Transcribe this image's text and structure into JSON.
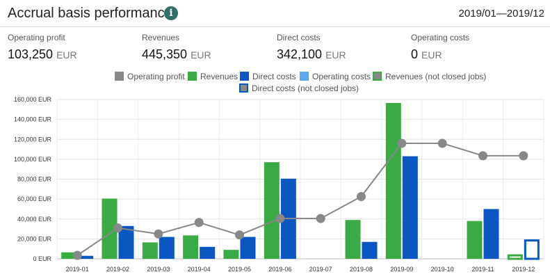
{
  "header": {
    "title": "Accrual basis performance",
    "info_icon": "info-icon",
    "period": "2019/01—2019/12"
  },
  "kpis": [
    {
      "label": "Operating profit",
      "value": "103,250",
      "unit": "EUR"
    },
    {
      "label": "Revenues",
      "value": "445,350",
      "unit": "EUR"
    },
    {
      "label": "Direct costs",
      "value": "342,100",
      "unit": "EUR"
    },
    {
      "label": "Operating costs",
      "value": "0",
      "unit": "EUR"
    }
  ],
  "colors": {
    "operating_profit": "#888888",
    "revenues": "#3aaa44",
    "direct_costs": "#0a57c2",
    "operating_costs": "#5aa8f0"
  },
  "chart_data": {
    "type": "bar",
    "categories": [
      "2019-01",
      "2019-02",
      "2019-03",
      "2019-04",
      "2019-05",
      "2019-06",
      "2019-07",
      "2019-08",
      "2019-09",
      "2019-10",
      "2019-11",
      "2019-12"
    ],
    "ylim": [
      0,
      160000
    ],
    "yticks": [
      0,
      20000,
      40000,
      60000,
      80000,
      100000,
      120000,
      140000,
      160000
    ],
    "ytick_labels": [
      "0 EUR",
      "20,000 EUR",
      "40,000 EUR",
      "60,000 EUR",
      "80,000 EUR",
      "100,000 EUR",
      "120,000 EUR",
      "140,000 EUR",
      "160,000 EUR"
    ],
    "grid": true,
    "legend_position": "top-center",
    "legend": [
      {
        "name": "Operating profit",
        "color": "#888888",
        "style": "square-gray"
      },
      {
        "name": "Revenues",
        "color": "#3aaa44",
        "style": "square"
      },
      {
        "name": "Direct costs",
        "color": "#0a57c2",
        "style": "square"
      },
      {
        "name": "Operating costs",
        "color": "#5aa8f0",
        "style": "square"
      },
      {
        "name": "Revenues (not closed jobs)",
        "color": "#3aaa44",
        "style": "outlined"
      },
      {
        "name": "Direct costs (not closed jobs)",
        "color": "#0a57c2",
        "style": "outlined"
      }
    ],
    "series": [
      {
        "name": "Revenues",
        "type": "bar",
        "values": [
          6500,
          60500,
          16500,
          23500,
          9000,
          97000,
          0,
          39000,
          156500,
          0,
          38000,
          0
        ]
      },
      {
        "name": "Direct costs",
        "type": "bar",
        "values": [
          3000,
          33000,
          22000,
          12000,
          22000,
          80500,
          0,
          17000,
          103000,
          0,
          50000,
          0
        ]
      },
      {
        "name": "Operating costs",
        "type": "bar",
        "values": [
          0,
          0,
          0,
          0,
          0,
          0,
          0,
          0,
          0,
          0,
          0,
          0
        ]
      },
      {
        "name": "Revenues (not closed jobs)",
        "type": "bar-outline",
        "values": [
          0,
          0,
          0,
          0,
          0,
          0,
          0,
          0,
          0,
          0,
          0,
          4500
        ]
      },
      {
        "name": "Direct costs (not closed jobs)",
        "type": "bar-outline",
        "values": [
          0,
          0,
          0,
          0,
          0,
          0,
          0,
          0,
          0,
          0,
          0,
          19500
        ]
      },
      {
        "name": "Operating profit",
        "type": "line",
        "values": [
          3500,
          31000,
          25000,
          36500,
          24000,
          40500,
          40500,
          62500,
          116000,
          116000,
          103500,
          103500
        ]
      }
    ]
  }
}
